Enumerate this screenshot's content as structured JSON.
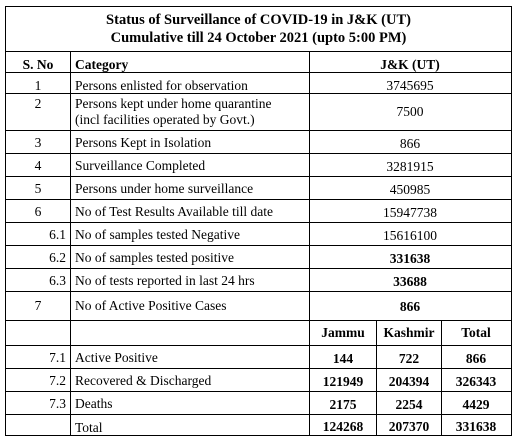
{
  "title_line1": "Status of Surveillance of COVID-19 in J&K (UT)",
  "title_line2": "Cumulative till 24 October 2021 (upto 5:00 PM)",
  "header": {
    "sno": "S. No",
    "category": "Category",
    "value": "J&K (UT)"
  },
  "rows": [
    {
      "sno": "1",
      "category": "Persons enlisted for observation",
      "value": "3745695"
    },
    {
      "sno": "2",
      "category": "Persons kept under home quarantine",
      "category2": "(incl facilities operated by Govt.)",
      "value": "7500"
    },
    {
      "sno": "3",
      "category": "Persons Kept in Isolation",
      "value": "866"
    },
    {
      "sno": "4",
      "category": "Surveillance  Completed",
      "value": "3281915"
    },
    {
      "sno": "5",
      "category": "Persons under home surveillance",
      "value": "450985"
    },
    {
      "sno": "6",
      "category": "No of Test Results Available till date",
      "value": "15947738"
    },
    {
      "sno": "6.1",
      "category": "No of samples tested Negative",
      "value": "15616100"
    },
    {
      "sno": "6.2",
      "category": "No of samples tested positive",
      "value": "331638"
    },
    {
      "sno": "6.3",
      "category": "No of tests reported in last 24 hrs",
      "value": "33688"
    },
    {
      "sno": "7",
      "category": "No of Active Positive Cases",
      "value": "866"
    }
  ],
  "region_header": {
    "jammu": "Jammu",
    "kashmir": "Kashmir",
    "total": "Total"
  },
  "region_rows": [
    {
      "sno": "7.1",
      "category": "Active Positive",
      "jammu": "144",
      "kashmir": "722",
      "total": "866"
    },
    {
      "sno": "7.2",
      "category": "Recovered & Discharged",
      "jammu": "121949",
      "kashmir": "204394",
      "total": "326343"
    },
    {
      "sno": "7.3",
      "category": "Deaths",
      "jammu": "2175",
      "kashmir": "2254",
      "total": "4429"
    },
    {
      "sno": "",
      "category": "Total",
      "jammu": "124268",
      "kashmir": "207370",
      "total": "331638"
    }
  ]
}
